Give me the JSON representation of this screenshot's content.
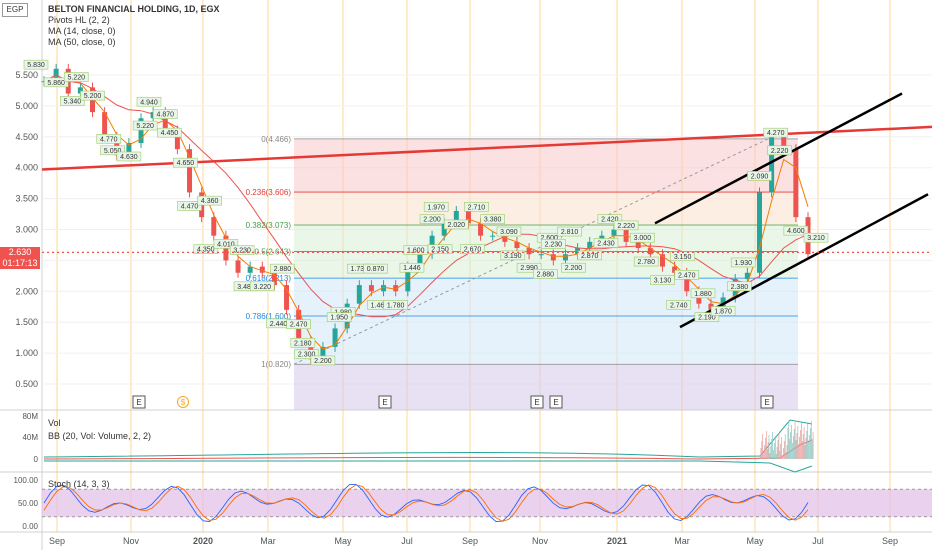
{
  "currency": "EGP",
  "legend": {
    "title": "BELTON FINANCIAL HOLDING, 1D, EGX",
    "pivots": "Pivots HL (2, 2)",
    "ma14": "MA (14, close, 0)",
    "ma50": "MA (50, close, 0)"
  },
  "price_tag": {
    "price": "2.630",
    "countdown": "01:17:13"
  },
  "volume_pane": {
    "vol": "Vol",
    "bb": "BB (20, Vol: Volume, 2, 2)"
  },
  "stoch_pane": {
    "label": "Stoch (14, 3, 3)"
  },
  "colors": {
    "up": "#26a69a",
    "down": "#ef5350",
    "ma14": "#f57c00",
    "ma50": "#ef5350",
    "trend": "#e53935",
    "channel": "#000000",
    "stoch_band": "#e1bee7",
    "stoch_k": "#2962ff",
    "stoch_d": "#ff6d00"
  },
  "chart_data": {
    "type": "candlestick",
    "y_ticks": [
      "5.500",
      "5.000",
      "4.500",
      "4.000",
      "3.500",
      "3.000",
      "2.500",
      "2.000",
      "1.500",
      "1.000",
      "0.500"
    ],
    "y_range": [
      0.3,
      6.2
    ],
    "x_ticks": [
      "Sep",
      "Nov",
      "2020",
      "Mar",
      "May",
      "Jul",
      "Sep",
      "Nov",
      "2021",
      "Mar",
      "May",
      "Jul",
      "Sep"
    ],
    "close_series": [
      5.4,
      5.6,
      5.2,
      5.3,
      4.9,
      4.5,
      4.2,
      4.4,
      4.8,
      4.9,
      4.6,
      4.3,
      3.6,
      3.2,
      2.9,
      2.5,
      2.3,
      2.4,
      2.3,
      2.1,
      1.7,
      1.2,
      0.9,
      1.1,
      1.4,
      1.8,
      2.1,
      2.0,
      2.1,
      2.0,
      2.4,
      2.6,
      2.9,
      3.1,
      3.3,
      3.1,
      2.9,
      2.9,
      2.8,
      2.7,
      2.6,
      2.6,
      2.5,
      2.6,
      2.7,
      2.8,
      2.9,
      3.0,
      2.8,
      2.7,
      2.6,
      2.4,
      2.3,
      2.0,
      1.8,
      1.7,
      1.9,
      2.2,
      2.3,
      3.6,
      4.5,
      4.3,
      3.2,
      2.6
    ],
    "pivot_labels": [
      "5.830",
      "5.860",
      "5.220",
      "5.340",
      "5.200",
      "5.050",
      "4.770",
      "4.630",
      "4.940",
      "5.220",
      "4.870",
      "4.650",
      "4.450",
      "4.470",
      "4.360",
      "4.350",
      "4.010",
      "3.480",
      "3.230",
      "3.220",
      "2.880",
      "2.440",
      "2.470",
      "2.300",
      "2.180",
      "2.200",
      "1.980",
      "1.950",
      "1.730",
      "1.460",
      "0.870",
      "1.780",
      "1.600",
      "1.446",
      "2.200",
      "2.150",
      "1.970",
      "2.020",
      "2.710",
      "2.670",
      "3.380",
      "3.190",
      "3.090",
      "2.990",
      "2.600",
      "2.880",
      "2.230",
      "2.200",
      "2.810",
      "2.870",
      "2.420",
      "2.430",
      "2.220",
      "2.780",
      "3.000",
      "3.130",
      "3.150",
      "2.740",
      "2.470",
      "2.190",
      "1.880",
      "1.870",
      "1.930",
      "2.380",
      "2.090",
      "2.220",
      "4.270",
      "4.600",
      "3.210"
    ],
    "fibonacci": [
      {
        "level": "0(4.466)",
        "price": 4.466
      },
      {
        "level": "0.236(3.606)",
        "price": 3.606
      },
      {
        "level": "0.382(3.073)",
        "price": 3.073
      },
      {
        "level": "0.5(2.643)",
        "price": 2.643
      },
      {
        "level": "0.618(2.213)",
        "price": 2.213
      },
      {
        "level": "0.786(1.600)",
        "price": 1.6
      },
      {
        "level": "1(0.820)",
        "price": 0.82
      }
    ],
    "volume_ticks": [
      "80M",
      "40M",
      "0"
    ],
    "stoch_ticks": [
      "100.00",
      "50.00",
      "0.00"
    ],
    "events": [
      "E",
      "$",
      "E",
      "E",
      "E",
      "E"
    ]
  }
}
